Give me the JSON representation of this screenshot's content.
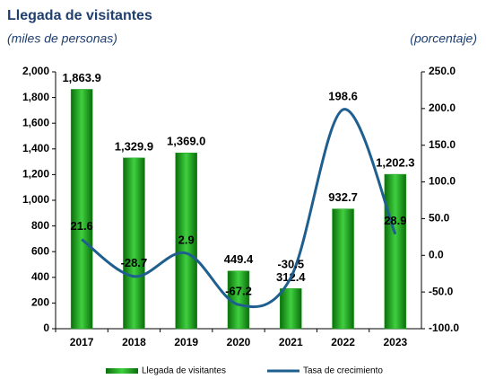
{
  "chart_data": {
    "type": "bar_line",
    "title": "Llegada de visitantes",
    "y_label": "(miles de personas)",
    "y2_label": "(porcentaje)",
    "categories": [
      "2017",
      "2018",
      "2019",
      "2020",
      "2021",
      "2022",
      "2023"
    ],
    "series": [
      {
        "name": "Llegada de visitantes",
        "type": "bar",
        "color": "#1fa01f",
        "values": [
          1863.9,
          1329.9,
          1369.0,
          449.4,
          312.4,
          932.7,
          1202.3
        ],
        "value_labels": [
          "1,863.9",
          "1,329.9",
          "1,369.0",
          "449.4",
          "312.4",
          "932.7",
          "1,202.3"
        ]
      },
      {
        "name": "Tasa de crecimiento",
        "type": "line",
        "axis": "y2",
        "color": "#1f5f8f",
        "values": [
          21.6,
          -28.7,
          2.9,
          -67.2,
          -30.5,
          198.6,
          28.9
        ]
      }
    ],
    "ylim": [
      0,
      2000
    ],
    "yticks": [
      0,
      200,
      400,
      600,
      800,
      {
        "value": 1000,
        "label": "1,000"
      },
      {
        "value": 1200,
        "label": "1,200"
      },
      {
        "value": 1400,
        "label": "1,400"
      },
      {
        "value": 1600,
        "label": "1,600"
      },
      {
        "value": 1800,
        "label": "1,800"
      },
      {
        "value": 2000,
        "label": "2,000"
      }
    ],
    "y2lim": [
      -100,
      250
    ],
    "y2ticks": [
      {
        "value": -100,
        "label": "-100.0"
      },
      {
        "value": -50,
        "label": "-50.0"
      },
      {
        "value": 0,
        "label": "0.0"
      },
      {
        "value": 50,
        "label": "50.0"
      },
      {
        "value": 100,
        "label": "100.0"
      },
      {
        "value": 150,
        "label": "150.0"
      },
      {
        "value": 200,
        "label": "200.0"
      },
      {
        "value": 250,
        "label": "250.0"
      }
    ],
    "legend": "bottom"
  }
}
